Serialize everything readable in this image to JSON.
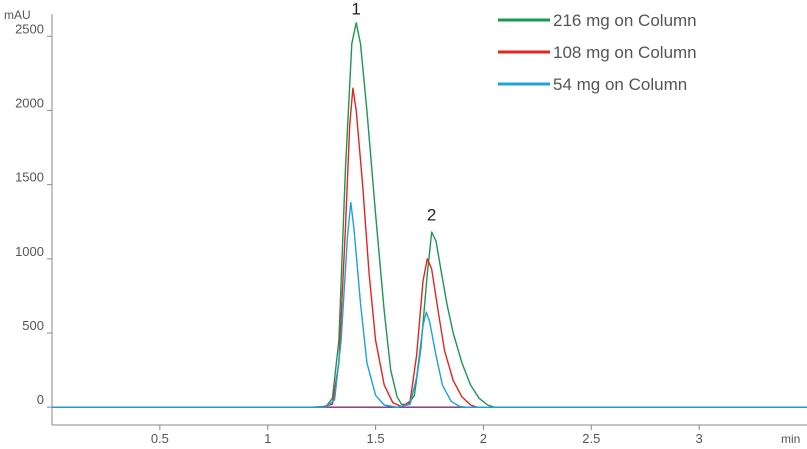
{
  "chart_data": {
    "type": "line",
    "title": "",
    "ylabel": "mAU",
    "xlabel": "min",
    "xlim": [
      0,
      3.5
    ],
    "ylim": [
      -120,
      2650
    ],
    "x_ticks": [
      {
        "value": 0.5,
        "label": "0.5"
      },
      {
        "value": 1,
        "label": "1"
      },
      {
        "value": 1.5,
        "label": "1.5"
      },
      {
        "value": 2,
        "label": "2"
      },
      {
        "value": 2.5,
        "label": "2.5"
      },
      {
        "value": 3,
        "label": "3"
      }
    ],
    "y_ticks": [
      {
        "value": 0,
        "label": "0"
      },
      {
        "value": 500,
        "label": "500"
      },
      {
        "value": 1000,
        "label": "1000"
      },
      {
        "value": 1500,
        "label": "1500"
      },
      {
        "value": 2000,
        "label": "2000"
      },
      {
        "value": 2500,
        "label": "2500"
      }
    ],
    "grid": false,
    "legend_position": "top-right",
    "peak_labels": [
      {
        "text": "1",
        "x": 1.41,
        "y": 2580
      },
      {
        "text": "2",
        "x": 1.76,
        "y": 1190
      }
    ],
    "series": [
      {
        "name": "216 mg on Column",
        "color": "#1a9850",
        "points": [
          [
            0.0,
            0
          ],
          [
            1.2,
            0
          ],
          [
            1.27,
            5
          ],
          [
            1.3,
            60
          ],
          [
            1.33,
            450
          ],
          [
            1.36,
            1600
          ],
          [
            1.39,
            2450
          ],
          [
            1.41,
            2590
          ],
          [
            1.43,
            2450
          ],
          [
            1.46,
            2000
          ],
          [
            1.5,
            1300
          ],
          [
            1.54,
            650
          ],
          [
            1.57,
            250
          ],
          [
            1.6,
            70
          ],
          [
            1.62,
            20
          ],
          [
            1.65,
            15
          ],
          [
            1.68,
            80
          ],
          [
            1.71,
            400
          ],
          [
            1.74,
            900
          ],
          [
            1.76,
            1180
          ],
          [
            1.78,
            1120
          ],
          [
            1.8,
            950
          ],
          [
            1.83,
            700
          ],
          [
            1.86,
            500
          ],
          [
            1.9,
            300
          ],
          [
            1.94,
            150
          ],
          [
            1.98,
            60
          ],
          [
            2.02,
            15
          ],
          [
            2.05,
            0
          ],
          [
            3.5,
            0
          ]
        ]
      },
      {
        "name": "108 mg on Column",
        "color": "#e0261f",
        "points": [
          [
            0.0,
            0
          ],
          [
            1.25,
            0
          ],
          [
            1.3,
            20
          ],
          [
            1.33,
            300
          ],
          [
            1.36,
            1200
          ],
          [
            1.38,
            1900
          ],
          [
            1.395,
            2150
          ],
          [
            1.41,
            2000
          ],
          [
            1.44,
            1500
          ],
          [
            1.47,
            900
          ],
          [
            1.5,
            450
          ],
          [
            1.54,
            150
          ],
          [
            1.58,
            30
          ],
          [
            1.62,
            5
          ],
          [
            1.66,
            40
          ],
          [
            1.69,
            350
          ],
          [
            1.72,
            850
          ],
          [
            1.74,
            1000
          ],
          [
            1.76,
            930
          ],
          [
            1.79,
            650
          ],
          [
            1.82,
            380
          ],
          [
            1.86,
            180
          ],
          [
            1.9,
            70
          ],
          [
            1.94,
            15
          ],
          [
            1.97,
            0
          ],
          [
            3.5,
            0
          ]
        ]
      },
      {
        "name": "54 mg on Column",
        "color": "#1ea1dc",
        "points": [
          [
            0.0,
            0
          ],
          [
            1.27,
            0
          ],
          [
            1.31,
            50
          ],
          [
            1.34,
            450
          ],
          [
            1.37,
            1150
          ],
          [
            1.385,
            1380
          ],
          [
            1.4,
            1200
          ],
          [
            1.43,
            700
          ],
          [
            1.46,
            300
          ],
          [
            1.5,
            80
          ],
          [
            1.54,
            15
          ],
          [
            1.6,
            0
          ],
          [
            1.66,
            20
          ],
          [
            1.69,
            200
          ],
          [
            1.72,
            550
          ],
          [
            1.735,
            640
          ],
          [
            1.75,
            580
          ],
          [
            1.78,
            350
          ],
          [
            1.81,
            150
          ],
          [
            1.85,
            40
          ],
          [
            1.89,
            5
          ],
          [
            1.92,
            0
          ],
          [
            3.5,
            0
          ]
        ]
      },
      {
        "name": "",
        "color": "#7b2a7b",
        "points": [
          [
            0.0,
            0
          ],
          [
            3.5,
            0
          ]
        ]
      }
    ]
  }
}
